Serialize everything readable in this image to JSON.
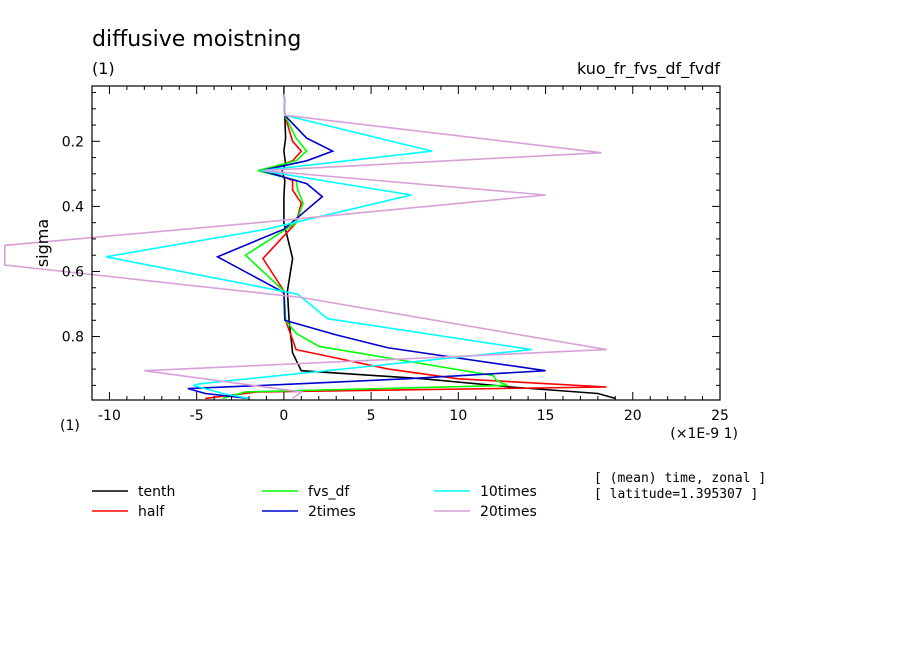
{
  "chart_data": {
    "type": "line",
    "title": "diffusive moistning",
    "subtitle_left": "(1)",
    "subtitle_right": "kuo_fr_fvs_df_fvdf",
    "ylabel": "sigma",
    "y_unit": "(1)",
    "x_unit": "(×1E-9 1)",
    "xlim": [
      -11,
      25
    ],
    "ylim": [
      0.03,
      0.995
    ],
    "y_reversed": true,
    "x_ticks": [
      -10,
      -5,
      0,
      5,
      10,
      15,
      20,
      25
    ],
    "x_tick_labels": [
      "-10",
      "-5",
      "0",
      "5",
      "10",
      "15",
      "20",
      "25"
    ],
    "y_ticks": [
      0.2,
      0.4,
      0.6,
      0.8
    ],
    "y_tick_labels": [
      "0.2",
      "0.4",
      "0.6",
      "0.8"
    ],
    "grid": false,
    "legend_position": "bottom",
    "info_lines": [
      "[ (mean) time, zonal ]",
      "[ latitude=1.395307 ]"
    ],
    "series": [
      {
        "name": "tenth",
        "color": "#000000",
        "points": [
          [
            0.0,
            0.03
          ],
          [
            0.05,
            0.12
          ],
          [
            0.1,
            0.19
          ],
          [
            0.0,
            0.23
          ],
          [
            0.1,
            0.27
          ],
          [
            -0.1,
            0.29
          ],
          [
            0.05,
            0.32
          ],
          [
            0.0,
            0.37
          ],
          [
            0.0,
            0.45
          ],
          [
            0.5,
            0.56
          ],
          [
            0.2,
            0.66
          ],
          [
            0.3,
            0.75
          ],
          [
            0.5,
            0.85
          ],
          [
            1.0,
            0.905
          ],
          [
            8.0,
            0.93
          ],
          [
            13.0,
            0.955
          ],
          [
            18.0,
            0.975
          ],
          [
            19.0,
            0.99
          ]
        ]
      },
      {
        "name": "half",
        "color": "#ff0000",
        "points": [
          [
            0.0,
            0.03
          ],
          [
            0.05,
            0.12
          ],
          [
            0.5,
            0.2
          ],
          [
            1.0,
            0.23
          ],
          [
            0.5,
            0.26
          ],
          [
            -1.0,
            0.29
          ],
          [
            0.5,
            0.32
          ],
          [
            0.5,
            0.35
          ],
          [
            1.0,
            0.39
          ],
          [
            0.7,
            0.45
          ],
          [
            -1.2,
            0.56
          ],
          [
            0.0,
            0.66
          ],
          [
            0.1,
            0.75
          ],
          [
            0.7,
            0.84
          ],
          [
            6.0,
            0.9
          ],
          [
            10.0,
            0.93
          ],
          [
            18.5,
            0.955
          ],
          [
            -1.5,
            0.97
          ],
          [
            -4.5,
            0.99
          ]
        ]
      },
      {
        "name": "fvs_df",
        "color": "#00ff00",
        "points": [
          [
            0.0,
            0.03
          ],
          [
            0.05,
            0.12
          ],
          [
            0.7,
            0.19
          ],
          [
            1.3,
            0.23
          ],
          [
            0.7,
            0.26
          ],
          [
            -1.5,
            0.29
          ],
          [
            0.7,
            0.32
          ],
          [
            0.8,
            0.35
          ],
          [
            1.1,
            0.39
          ],
          [
            0.7,
            0.45
          ],
          [
            -2.2,
            0.55
          ],
          [
            0.0,
            0.66
          ],
          [
            0.1,
            0.75
          ],
          [
            0.7,
            0.79
          ],
          [
            2.0,
            0.83
          ],
          [
            12.0,
            0.92
          ],
          [
            12.2,
            0.935
          ],
          [
            12.8,
            0.95
          ],
          [
            -2.2,
            0.97
          ],
          [
            -3.5,
            0.99
          ]
        ]
      },
      {
        "name": "2times",
        "color": "#0000cd",
        "points": [
          [
            0.0,
            0.03
          ],
          [
            0.05,
            0.12
          ],
          [
            1.3,
            0.19
          ],
          [
            2.8,
            0.23
          ],
          [
            1.3,
            0.26
          ],
          [
            -1.3,
            0.29
          ],
          [
            1.3,
            0.33
          ],
          [
            2.2,
            0.37
          ],
          [
            0.0,
            0.47
          ],
          [
            -3.8,
            0.555
          ],
          [
            0.0,
            0.665
          ],
          [
            0.05,
            0.75
          ],
          [
            3.0,
            0.795
          ],
          [
            6.0,
            0.835
          ],
          [
            15.0,
            0.905
          ],
          [
            7.0,
            0.93
          ],
          [
            1.0,
            0.945
          ],
          [
            -5.5,
            0.96
          ],
          [
            -4.5,
            0.975
          ],
          [
            -2.0,
            0.99
          ]
        ]
      },
      {
        "name": "10times",
        "color": "#00ffff",
        "points": [
          [
            0.0,
            0.03
          ],
          [
            0.05,
            0.12
          ],
          [
            8.5,
            0.23
          ],
          [
            -1.3,
            0.29
          ],
          [
            7.3,
            0.365
          ],
          [
            -1.0,
            0.47
          ],
          [
            -10.2,
            0.555
          ],
          [
            0.8,
            0.67
          ],
          [
            2.5,
            0.745
          ],
          [
            14.2,
            0.84
          ],
          [
            -4.8,
            0.945
          ],
          [
            -5.2,
            0.95
          ],
          [
            -3.5,
            0.975
          ],
          [
            -2.0,
            0.99
          ]
        ]
      },
      {
        "name": "20times",
        "color": "#d8a0d8",
        "points": [
          [
            0.0,
            0.03
          ],
          [
            0.05,
            0.12
          ],
          [
            18.2,
            0.235
          ],
          [
            -1.2,
            0.29
          ],
          [
            15.0,
            0.365
          ],
          [
            -1.5,
            0.45
          ],
          [
            -16.0,
            0.52
          ],
          [
            -16.0,
            0.58
          ],
          [
            1.0,
            0.68
          ],
          [
            18.5,
            0.84
          ],
          [
            -8.0,
            0.905
          ],
          [
            1.0,
            0.97
          ],
          [
            0.5,
            0.99
          ]
        ]
      }
    ]
  }
}
